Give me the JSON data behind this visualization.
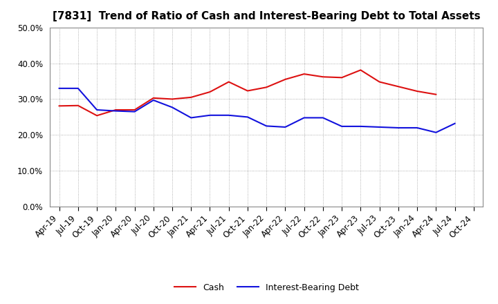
{
  "title": "[7831]  Trend of Ratio of Cash and Interest-Bearing Debt to Total Assets",
  "x_labels": [
    "Apr-19",
    "Jul-19",
    "Oct-19",
    "Jan-20",
    "Apr-20",
    "Jul-20",
    "Oct-20",
    "Jan-21",
    "Apr-21",
    "Jul-21",
    "Oct-21",
    "Jan-22",
    "Apr-22",
    "Jul-22",
    "Oct-22",
    "Jan-23",
    "Apr-23",
    "Jul-23",
    "Oct-23",
    "Jan-24",
    "Apr-24",
    "Jul-24",
    "Oct-24"
  ],
  "cash": [
    0.281,
    0.282,
    0.254,
    0.27,
    0.27,
    0.303,
    0.3,
    0.305,
    0.32,
    0.348,
    0.323,
    0.333,
    0.355,
    0.37,
    0.362,
    0.36,
    0.381,
    0.348,
    0.335,
    0.322,
    0.313,
    null,
    null
  ],
  "debt": [
    0.33,
    0.33,
    0.27,
    0.267,
    0.265,
    0.297,
    0.277,
    0.248,
    0.255,
    0.255,
    0.25,
    0.225,
    0.222,
    0.248,
    0.248,
    0.224,
    0.224,
    0.222,
    0.22,
    0.22,
    0.207,
    0.232,
    null
  ],
  "cash_color": "#dd1111",
  "debt_color": "#1111dd",
  "ylim": [
    0.0,
    0.5
  ],
  "yticks": [
    0.0,
    0.1,
    0.2,
    0.3,
    0.4,
    0.5
  ],
  "legend_cash": "Cash",
  "legend_debt": "Interest-Bearing Debt",
  "background_color": "#ffffff",
  "grid_color": "#999999",
  "title_fontsize": 11,
  "tick_fontsize": 8.5
}
